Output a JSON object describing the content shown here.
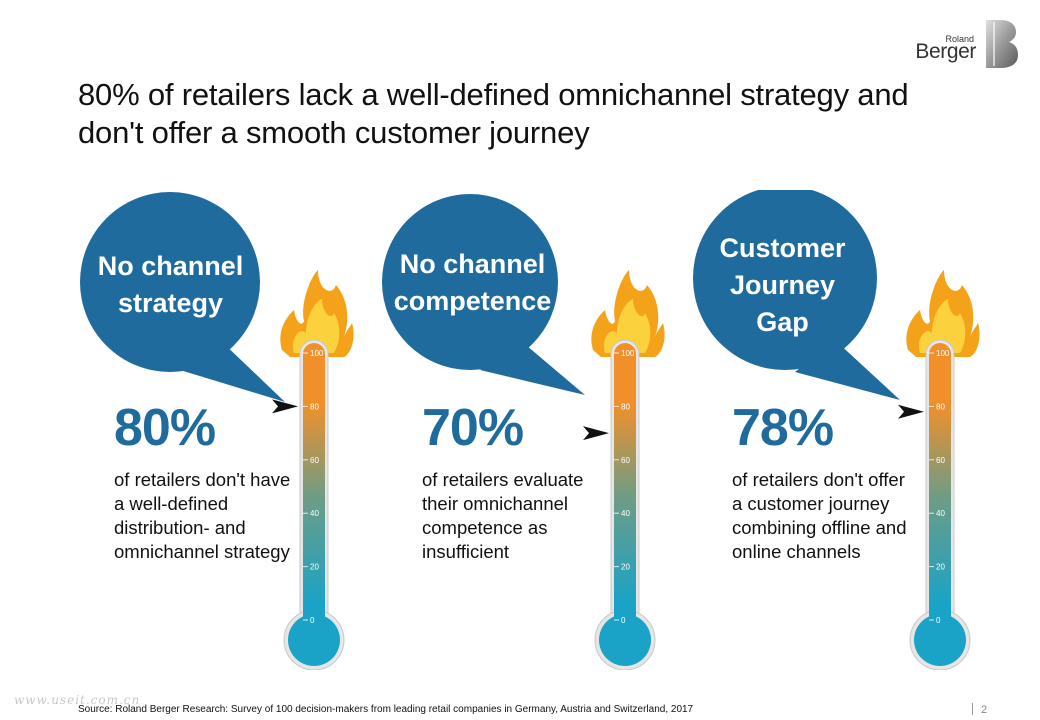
{
  "title": {
    "line1": "80% of retailers lack a well-defined omnichannel strategy and",
    "line2": "don't offer a smooth customer journey"
  },
  "logo": {
    "small": "Roland",
    "big": "Berger"
  },
  "thermometer": {
    "ticks": [
      "100",
      "80",
      "60",
      "40",
      "20",
      "0"
    ],
    "colors": {
      "top": "#f0902a",
      "mid": "#6f9c85",
      "bottom": "#1aa3c7",
      "flame_outer": "#f5a21b",
      "flame_inner": "#fbd23d",
      "bubble": "#1f6b9e"
    }
  },
  "panels": [
    {
      "bubble": [
        "No channel",
        "strategy"
      ],
      "percent": "80%",
      "value": 80,
      "description": [
        "of retailers don't have",
        "a well-defined",
        "distribution- and",
        "omnichannel strategy"
      ]
    },
    {
      "bubble": [
        "No channel",
        "competence"
      ],
      "percent": "70%",
      "value": 70,
      "description": [
        "of retailers evaluate",
        "their omnichannel",
        "competence as",
        "insufficient"
      ]
    },
    {
      "bubble": [
        "Customer",
        "Journey",
        "Gap"
      ],
      "percent": "78%",
      "value": 78,
      "description": [
        "of retailers don't offer",
        "a customer journey",
        "combining offline and",
        "online channels"
      ]
    }
  ],
  "source": "Source: Roland Berger Research: Survey of 100 decision-makers from leading retail companies in Germany, Austria and Switzerland, 2017",
  "watermark": "www.useit.com.cn",
  "page_number": "2"
}
